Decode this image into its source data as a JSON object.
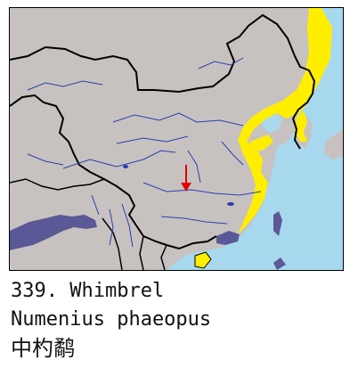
{
  "caption": {
    "line1": "339. Whimbrel",
    "line2": "Numenius phaeopus",
    "line3": "中杓鹬"
  },
  "legend_colors": {
    "ocean": "#a8d8ee",
    "land": "#c7c2c0",
    "breeding_or_passage_range": "#ffee00",
    "wintering_range": "#5a5896",
    "rivers": "#2a3fb0",
    "record_marker": "#e00000"
  },
  "marker": {
    "icon": "red-arrow-icon"
  }
}
